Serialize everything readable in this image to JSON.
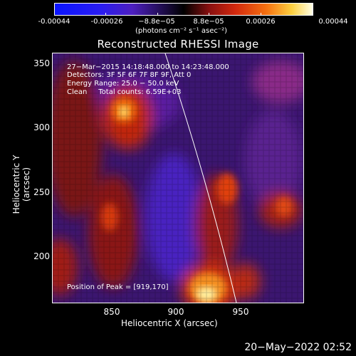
{
  "colorbar": {
    "ticks": [
      "-0.00044",
      "-0.00026",
      "−8.8e−05",
      "8.8e−05",
      "0.00026",
      "0.00044"
    ],
    "units": "(photons cm⁻² s⁻¹ asec⁻²)"
  },
  "title": "Reconstructed RHESSI Image",
  "annotations": {
    "time_range": "27−Mar−2015 14:18:48.000 to 14:23:48.000",
    "detectors": "Detectors: 3F 5F 6F 7F 8F 9F, Att 0",
    "energy": "Energy Range: 25.0 − 50.0 keV",
    "clean": "Clean     Total counts: 6.59E+03",
    "peak": "Position of Peak = [919,170]"
  },
  "axes": {
    "xlabel": "Heliocentric X (arcsec)",
    "ylabel": "Heliocentric Y (arcsec)",
    "xticks": [
      "850",
      "900",
      "950"
    ],
    "yticks": [
      "350",
      "300",
      "250",
      "200"
    ]
  },
  "footer_date": "20−May−2022 02:52",
  "colors": {
    "background": "#000000",
    "text": "#ffffff",
    "limb": "#ffffff"
  }
}
